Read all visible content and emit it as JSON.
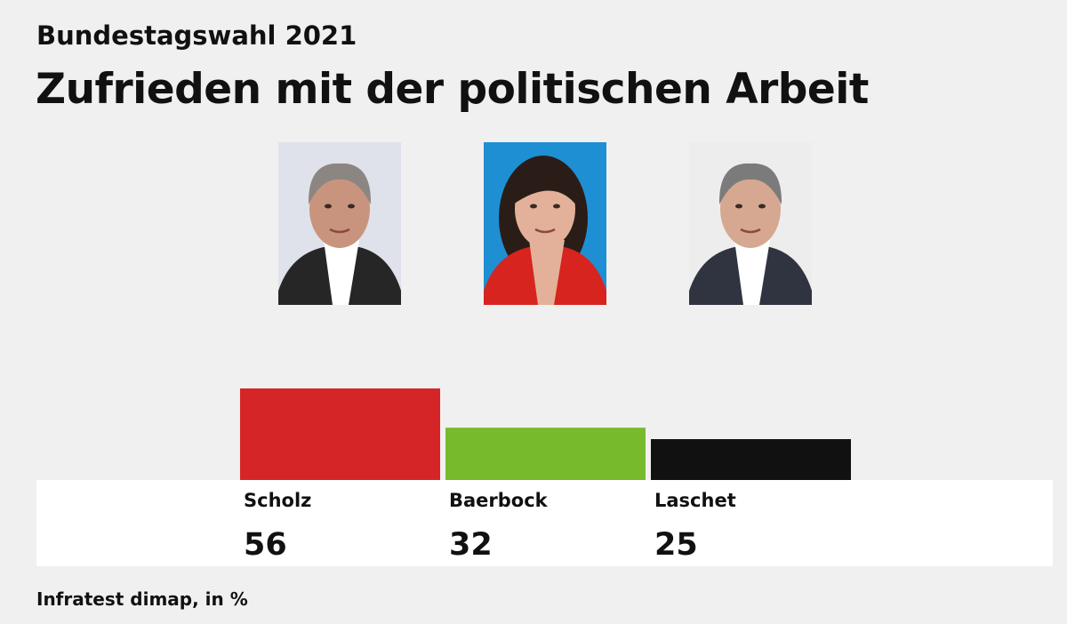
{
  "header": {
    "kicker": "Bundestagswahl 2021",
    "title": "Zufrieden mit der politischen Arbeit"
  },
  "chart_data": {
    "type": "bar",
    "categories": [
      "Scholz",
      "Baerbock",
      "Laschet"
    ],
    "values": [
      56,
      32,
      25
    ],
    "colors": [
      "#d62527",
      "#77bb2d",
      "#111111"
    ],
    "title": "Zufrieden mit der politischen Arbeit",
    "ylabel": "",
    "xlabel": "",
    "ylim": [
      0,
      56
    ],
    "grid": false,
    "legend": "none"
  },
  "portraits": [
    {
      "name": "Scholz",
      "bg": "#dfe2ea",
      "hair": "#8c8682",
      "skin": "#c9947d",
      "jacket": "#262626",
      "shirt": "#ffffff"
    },
    {
      "name": "Baerbock",
      "bg": "#1f8fd3",
      "hair": "#2a1d18",
      "skin": "#e3b199",
      "jacket": "#d7241f",
      "shirt": "#e3b199"
    },
    {
      "name": "Laschet",
      "bg": "#ededed",
      "hair": "#7b7b7b",
      "skin": "#d6a891",
      "jacket": "#2f3440",
      "shirt": "#ffffff"
    }
  ],
  "footer": {
    "source": "Infratest dimap, in %"
  }
}
